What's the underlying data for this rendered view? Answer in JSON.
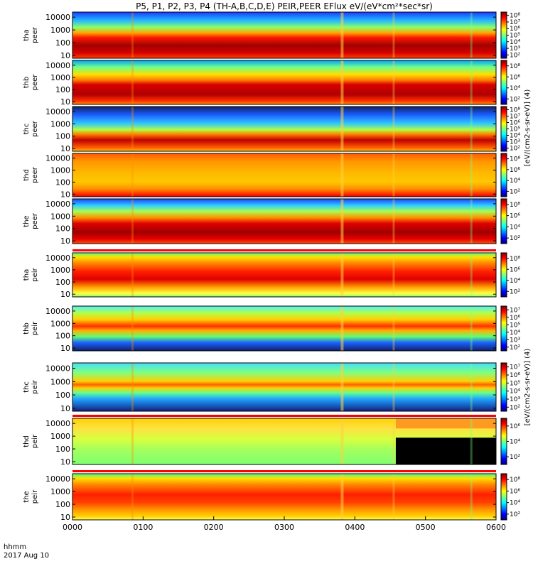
{
  "chart_data": {
    "type": "heatmap",
    "title": "P5, P1, P2, P3, P4 (TH-A,B,C,D,E) PEIR,PEER EFlux eV/(eV*cm²*sec*sr)",
    "x_unit_label": "hhmm",
    "date_label": "2017 Aug 10",
    "x_ticks": [
      "0000",
      "0100",
      "0200",
      "0300",
      "0400",
      "0500",
      "0600"
    ],
    "xlim": [
      "00:00",
      "06:00"
    ],
    "y_scale": "log",
    "y_ticks": [
      "10",
      "100",
      "1000",
      "10000"
    ],
    "ylim": [
      6,
      25000
    ],
    "colorbar_label_electron": "[eV/(cm2-s-sr-eV)] (4)",
    "colorbar_label_ion": "[eV/(cm2-s-sr-eV)] (4)",
    "colormap": [
      "#000080",
      "#0000ff",
      "#0080ff",
      "#00ffff",
      "#80ff80",
      "#ffff00",
      "#ff8000",
      "#ff0000",
      "#800000"
    ],
    "panels": [
      {
        "label": "tha peer",
        "probe": "P5",
        "species": "electron",
        "cbar_ticks": [
          "10²",
          "10³",
          "10⁴",
          "10⁵",
          "10⁶",
          "10⁷",
          "10⁸"
        ]
      },
      {
        "label": "thb peer",
        "probe": "P1",
        "species": "electron",
        "cbar_ticks": [
          "10²",
          "10⁴",
          "10⁶",
          "10⁸"
        ]
      },
      {
        "label": "thc peer",
        "probe": "P2",
        "species": "electron",
        "cbar_ticks": [
          "10²",
          "10³",
          "10⁴",
          "10⁵",
          "10⁶",
          "10⁷",
          "10⁸"
        ]
      },
      {
        "label": "thd peer",
        "probe": "P3",
        "species": "electron",
        "cbar_ticks": [
          "10²",
          "10⁴",
          "10⁶",
          "10⁸"
        ]
      },
      {
        "label": "the peer",
        "probe": "P4",
        "species": "electron",
        "cbar_ticks": [
          "10²",
          "10⁴",
          "10⁶",
          "10⁸"
        ]
      },
      {
        "label": "tha peir",
        "probe": "P5",
        "species": "ion",
        "cbar_ticks": [
          "10²",
          "10⁴",
          "10⁶",
          "10⁸"
        ]
      },
      {
        "label": "thb peir",
        "probe": "P1",
        "species": "ion",
        "cbar_ticks": [
          "10²",
          "10³",
          "10⁴",
          "10⁵",
          "10⁶",
          "10⁷"
        ]
      },
      {
        "label": "thc peir",
        "probe": "P2",
        "species": "ion",
        "cbar_ticks": [
          "10²",
          "10³",
          "10⁴",
          "10⁵",
          "10⁶",
          "10⁷"
        ]
      },
      {
        "label": "thd peir",
        "probe": "P3",
        "species": "ion",
        "cbar_ticks": [
          "10²",
          "10⁴",
          "10⁶"
        ]
      },
      {
        "label": "the peir",
        "probe": "P4",
        "species": "ion",
        "cbar_ticks": [
          "10²",
          "10⁴",
          "10⁶",
          "10⁸"
        ]
      }
    ],
    "mode_bars": {
      "bar_colors": [
        "#ff0000",
        "#000000"
      ],
      "panels_with_bar": [
        "tha peir",
        "thd peir",
        "the peir"
      ]
    }
  }
}
